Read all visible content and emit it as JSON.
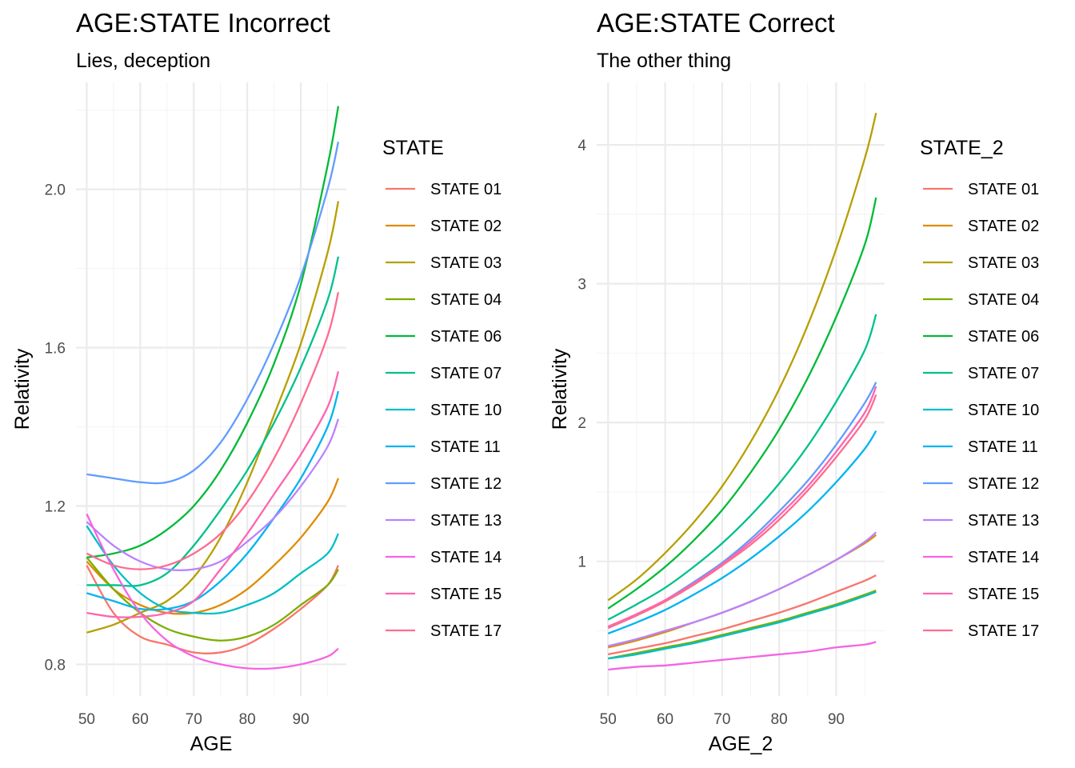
{
  "chart_data": [
    {
      "type": "line",
      "title": "AGE:STATE Incorrect",
      "subtitle": "Lies, deception",
      "xlabel": "AGE",
      "ylabel": "Relativity",
      "xlim": [
        48,
        98.5
      ],
      "ylim": [
        0.72,
        2.27
      ],
      "x_ticks": [
        50,
        60,
        70,
        80,
        90
      ],
      "y_ticks": [
        0.8,
        1.2,
        1.6,
        2.0
      ],
      "y_tick_labels": [
        "0.8",
        "1.2",
        "1.6",
        "2.0"
      ],
      "grid": true,
      "legend_title": "STATE",
      "legend_position": "right",
      "x": [
        50,
        55,
        60,
        65,
        70,
        75,
        80,
        85,
        90,
        95,
        97
      ],
      "series": [
        {
          "name": "STATE 01",
          "color": "#F8766D",
          "values": [
            1.05,
            0.93,
            0.87,
            0.85,
            0.83,
            0.83,
            0.85,
            0.89,
            0.94,
            1.0,
            1.05
          ]
        },
        {
          "name": "STATE 02",
          "color": "#DE8C00",
          "values": [
            1.06,
            0.99,
            0.95,
            0.93,
            0.93,
            0.95,
            0.99,
            1.05,
            1.12,
            1.21,
            1.27
          ]
        },
        {
          "name": "STATE 03",
          "color": "#B79F00",
          "values": [
            0.88,
            0.9,
            0.93,
            0.96,
            1.02,
            1.12,
            1.26,
            1.43,
            1.61,
            1.84,
            1.97
          ]
        },
        {
          "name": "STATE 04",
          "color": "#7CAE00",
          "values": [
            1.07,
            0.99,
            0.93,
            0.89,
            0.87,
            0.86,
            0.87,
            0.9,
            0.95,
            1.0,
            1.04
          ]
        },
        {
          "name": "STATE 06",
          "color": "#00BA38",
          "values": [
            1.07,
            1.08,
            1.1,
            1.14,
            1.2,
            1.29,
            1.41,
            1.56,
            1.76,
            2.06,
            2.21
          ]
        },
        {
          "name": "STATE 07",
          "color": "#00C08B",
          "values": [
            1.0,
            1.0,
            1.0,
            1.03,
            1.1,
            1.19,
            1.29,
            1.41,
            1.55,
            1.72,
            1.83
          ]
        },
        {
          "name": "STATE 10",
          "color": "#00BFC4",
          "values": [
            1.15,
            1.05,
            0.98,
            0.94,
            0.93,
            0.93,
            0.95,
            0.98,
            1.03,
            1.08,
            1.13
          ]
        },
        {
          "name": "STATE 11",
          "color": "#00B4F0",
          "values": [
            0.98,
            0.96,
            0.94,
            0.94,
            0.96,
            1.01,
            1.08,
            1.17,
            1.27,
            1.4,
            1.49
          ]
        },
        {
          "name": "STATE 12",
          "color": "#619CFF",
          "values": [
            1.28,
            1.27,
            1.26,
            1.26,
            1.29,
            1.36,
            1.47,
            1.61,
            1.78,
            2.0,
            2.12
          ]
        },
        {
          "name": "STATE 13",
          "color": "#B983FF",
          "values": [
            1.16,
            1.1,
            1.06,
            1.04,
            1.04,
            1.06,
            1.11,
            1.17,
            1.25,
            1.35,
            1.42
          ]
        },
        {
          "name": "STATE 14",
          "color": "#F564E3",
          "values": [
            1.18,
            1.04,
            0.93,
            0.86,
            0.82,
            0.8,
            0.79,
            0.79,
            0.8,
            0.82,
            0.84
          ]
        },
        {
          "name": "STATE 15",
          "color": "#FF64B0",
          "values": [
            0.93,
            0.92,
            0.92,
            0.93,
            0.96,
            1.04,
            1.13,
            1.23,
            1.33,
            1.45,
            1.54
          ]
        },
        {
          "name": "STATE 17",
          "color": "#FF6C91",
          "values": [
            1.08,
            1.05,
            1.04,
            1.05,
            1.08,
            1.13,
            1.21,
            1.32,
            1.46,
            1.63,
            1.74
          ]
        }
      ]
    },
    {
      "type": "line",
      "title": "AGE:STATE Correct",
      "subtitle": "The other thing",
      "xlabel": "AGE_2",
      "ylabel": "Relativity",
      "xlim": [
        48,
        98.5
      ],
      "ylim": [
        0.03,
        4.45
      ],
      "x_ticks": [
        50,
        60,
        70,
        80,
        90
      ],
      "y_ticks": [
        1,
        2,
        3,
        4
      ],
      "y_tick_labels": [
        "1",
        "2",
        "3",
        "4"
      ],
      "grid": true,
      "legend_title": "STATE_2",
      "legend_position": "right",
      "x": [
        50,
        55,
        60,
        65,
        70,
        75,
        80,
        85,
        90,
        95,
        97
      ],
      "series": [
        {
          "name": "STATE 01",
          "color": "#F8766D",
          "values": [
            0.33,
            0.37,
            0.41,
            0.46,
            0.51,
            0.57,
            0.63,
            0.7,
            0.78,
            0.86,
            0.9
          ]
        },
        {
          "name": "STATE 02",
          "color": "#DE8C00",
          "values": [
            0.38,
            0.43,
            0.49,
            0.56,
            0.63,
            0.71,
            0.8,
            0.9,
            1.01,
            1.13,
            1.19
          ]
        },
        {
          "name": "STATE 03",
          "color": "#B79F00",
          "values": [
            0.72,
            0.87,
            1.06,
            1.28,
            1.54,
            1.86,
            2.24,
            2.7,
            3.25,
            3.9,
            4.23
          ]
        },
        {
          "name": "STATE 04",
          "color": "#7CAE00",
          "values": [
            0.3,
            0.34,
            0.38,
            0.42,
            0.47,
            0.52,
            0.57,
            0.63,
            0.69,
            0.76,
            0.79
          ]
        },
        {
          "name": "STATE 06",
          "color": "#00BA38",
          "values": [
            0.66,
            0.8,
            0.96,
            1.15,
            1.37,
            1.64,
            1.95,
            2.32,
            2.76,
            3.28,
            3.62
          ]
        },
        {
          "name": "STATE 07",
          "color": "#00C08B",
          "values": [
            0.58,
            0.69,
            0.81,
            0.96,
            1.13,
            1.33,
            1.56,
            1.83,
            2.15,
            2.52,
            2.78
          ]
        },
        {
          "name": "STATE 10",
          "color": "#00BFC4",
          "values": [
            0.3,
            0.33,
            0.37,
            0.41,
            0.46,
            0.51,
            0.56,
            0.62,
            0.68,
            0.75,
            0.78
          ]
        },
        {
          "name": "STATE 11",
          "color": "#00B4F0",
          "values": [
            0.48,
            0.56,
            0.65,
            0.76,
            0.88,
            1.02,
            1.18,
            1.36,
            1.57,
            1.81,
            1.94
          ]
        },
        {
          "name": "STATE 12",
          "color": "#619CFF",
          "values": [
            0.52,
            0.61,
            0.72,
            0.85,
            0.99,
            1.16,
            1.36,
            1.58,
            1.84,
            2.14,
            2.29
          ]
        },
        {
          "name": "STATE 13",
          "color": "#B983FF",
          "values": [
            0.39,
            0.44,
            0.5,
            0.56,
            0.63,
            0.71,
            0.8,
            0.9,
            1.01,
            1.14,
            1.21
          ]
        },
        {
          "name": "STATE 14",
          "color": "#F564E3",
          "values": [
            0.22,
            0.24,
            0.25,
            0.27,
            0.29,
            0.31,
            0.33,
            0.35,
            0.38,
            0.4,
            0.42
          ]
        },
        {
          "name": "STATE 15",
          "color": "#FF64B0",
          "values": [
            0.53,
            0.62,
            0.72,
            0.84,
            0.98,
            1.14,
            1.33,
            1.54,
            1.79,
            2.07,
            2.26
          ]
        },
        {
          "name": "STATE 17",
          "color": "#FF6C91",
          "values": [
            0.52,
            0.61,
            0.71,
            0.83,
            0.97,
            1.12,
            1.3,
            1.51,
            1.75,
            2.02,
            2.2
          ]
        }
      ]
    }
  ]
}
